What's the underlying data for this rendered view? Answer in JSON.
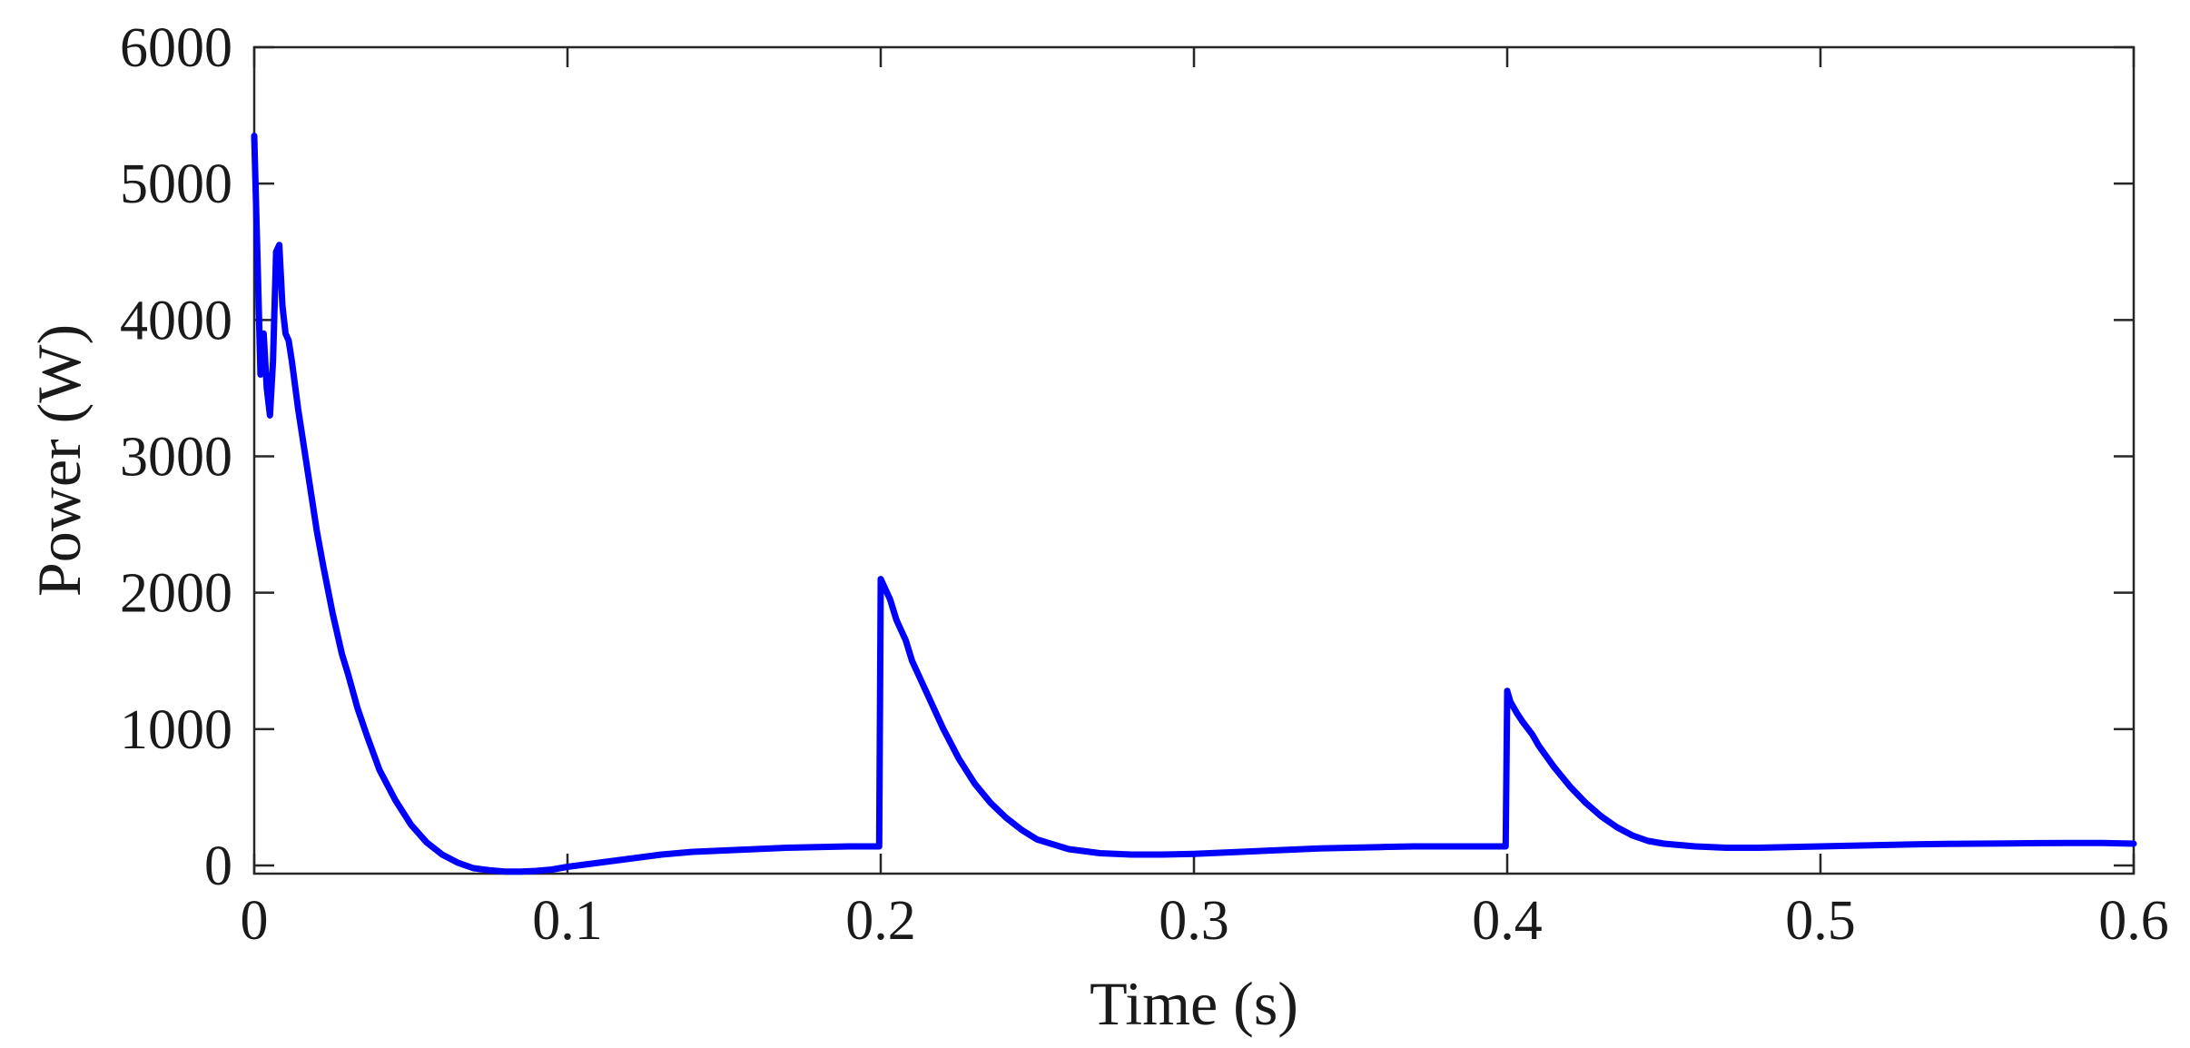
{
  "chart_data": {
    "type": "line",
    "title": "",
    "xlabel": "Time (s)",
    "ylabel": "Power (W)",
    "xlim": [
      0,
      0.6
    ],
    "ylim": [
      -60,
      6000
    ],
    "grid": false,
    "legend": "none",
    "x_ticks": [
      0,
      0.1,
      0.2,
      0.3,
      0.4,
      0.5,
      0.6
    ],
    "x_tick_labels": [
      "0",
      "0.1",
      "0.2",
      "0.3",
      "0.4",
      "0.5",
      "0.6"
    ],
    "y_ticks": [
      0,
      1000,
      2000,
      3000,
      4000,
      5000,
      6000
    ],
    "y_tick_labels": [
      "0",
      "1000",
      "2000",
      "3000",
      "4000",
      "5000",
      "6000"
    ],
    "series": [
      {
        "color": "#0000ff",
        "x": [
          0,
          0.001,
          0.002,
          0.003,
          0.004,
          0.005,
          0.006,
          0.007,
          0.008,
          0.009,
          0.01,
          0.011,
          0.012,
          0.014,
          0.016,
          0.018,
          0.02,
          0.022,
          0.025,
          0.028,
          0.03,
          0.033,
          0.036,
          0.04,
          0.045,
          0.05,
          0.055,
          0.06,
          0.065,
          0.07,
          0.075,
          0.08,
          0.085,
          0.09,
          0.095,
          0.1,
          0.11,
          0.12,
          0.13,
          0.14,
          0.15,
          0.16,
          0.17,
          0.18,
          0.19,
          0.1995,
          0.2,
          0.201,
          0.203,
          0.205,
          0.208,
          0.21,
          0.215,
          0.22,
          0.225,
          0.23,
          0.235,
          0.24,
          0.245,
          0.25,
          0.26,
          0.27,
          0.28,
          0.29,
          0.3,
          0.31,
          0.32,
          0.33,
          0.34,
          0.35,
          0.36,
          0.37,
          0.38,
          0.39,
          0.3995,
          0.4,
          0.401,
          0.403,
          0.405,
          0.408,
          0.41,
          0.415,
          0.42,
          0.425,
          0.43,
          0.435,
          0.44,
          0.445,
          0.45,
          0.46,
          0.47,
          0.48,
          0.49,
          0.5,
          0.51,
          0.52,
          0.53,
          0.54,
          0.55,
          0.56,
          0.57,
          0.58,
          0.59,
          0.6
        ],
        "y": [
          5350,
          4500,
          3600,
          3900,
          3500,
          3300,
          3700,
          4500,
          4550,
          4100,
          3900,
          3850,
          3700,
          3350,
          3050,
          2750,
          2450,
          2200,
          1850,
          1550,
          1400,
          1150,
          950,
          700,
          480,
          300,
          170,
          80,
          20,
          -20,
          -35,
          -45,
          -45,
          -40,
          -30,
          -10,
          20,
          50,
          80,
          100,
          110,
          120,
          130,
          135,
          140,
          140,
          2100,
          2050,
          1950,
          1800,
          1650,
          1500,
          1250,
          1000,
          780,
          600,
          460,
          350,
          260,
          190,
          120,
          90,
          80,
          80,
          85,
          95,
          105,
          115,
          125,
          130,
          135,
          140,
          140,
          140,
          140,
          1280,
          1200,
          1120,
          1050,
          960,
          880,
          720,
          580,
          460,
          360,
          280,
          220,
          180,
          160,
          140,
          130,
          130,
          135,
          140,
          145,
          150,
          155,
          158,
          160,
          162,
          164,
          165,
          165,
          160
        ]
      }
    ]
  }
}
